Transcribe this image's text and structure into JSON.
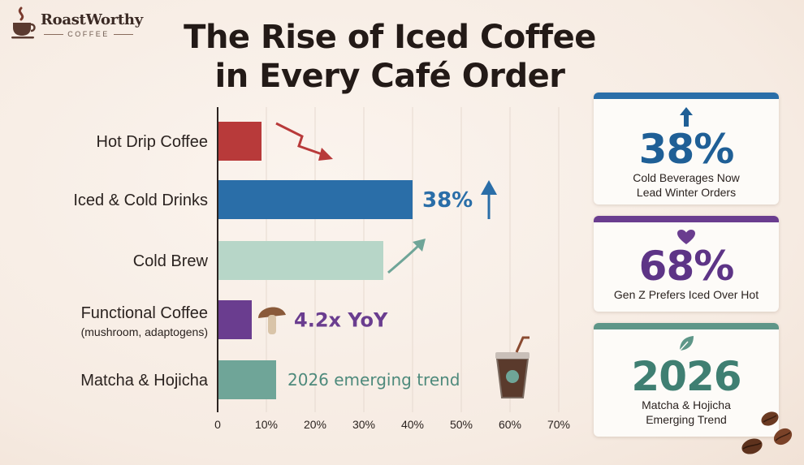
{
  "brand": {
    "name": "RoastWorthy",
    "sub": "COFFEE"
  },
  "title_line1": "The Rise of Iced Coffee",
  "title_line2": "in Every Café Order",
  "chart_data": {
    "type": "bar",
    "orientation": "horizontal",
    "categories": [
      "Hot Drip Coffee",
      "Iced & Cold Drinks",
      "Cold Brew",
      "Functional Coffee",
      "Matcha & Hojicha"
    ],
    "category_sublabels": [
      "",
      "",
      "",
      "(mushroom, adaptogens)",
      ""
    ],
    "values": [
      9,
      40,
      34,
      7,
      12
    ],
    "bar_colors": [
      "#b83a3a",
      "#2a6ea8",
      "#b7d6c8",
      "#6a3d8f",
      "#6fa598"
    ],
    "annotations": [
      "",
      "38%",
      "",
      "4.2x YoY",
      "2026 emerging trend"
    ],
    "annotation_colors": [
      "",
      "#2a6ea8",
      "",
      "#6a3d8f",
      "#4e8a7c"
    ],
    "xlim": [
      0,
      70
    ],
    "xticks": [
      "0",
      "10%",
      "20%",
      "30%",
      "40%",
      "50%",
      "60%",
      "70%"
    ],
    "grid": true
  },
  "cards": [
    {
      "value": "38%",
      "label_line1": "Cold Beverages Now",
      "label_line2": "Lead Winter Orders",
      "color": "#1f5f96",
      "bar_color": "#2a6ea8",
      "icon": "up-arrow-icon"
    },
    {
      "value": "68%",
      "label_line1": "Gen Z Prefers Iced Over Hot",
      "label_line2": "",
      "color": "#5d3486",
      "bar_color": "#6a3d8f",
      "icon": "heart-icon"
    },
    {
      "value": "2026",
      "label_line1": "Matcha & Hojicha",
      "label_line2": "Emerging Trend",
      "color": "#3f7f72",
      "bar_color": "#5e9688",
      "icon": "leaf-icon"
    }
  ]
}
